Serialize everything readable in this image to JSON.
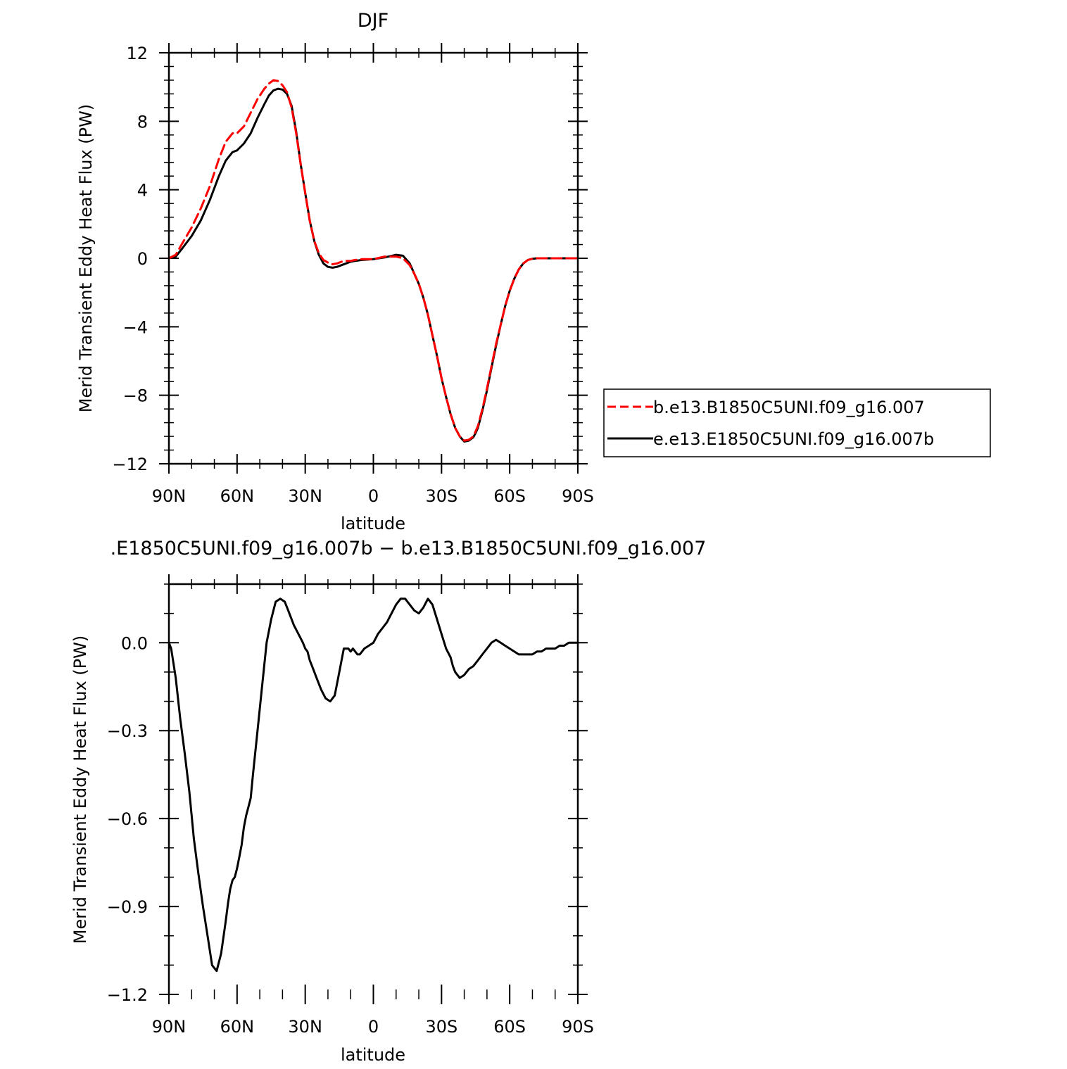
{
  "chart_data": [
    {
      "type": "line",
      "title": "DJF",
      "xlabel": "latitude",
      "ylabel": "Merid Transient Eddy Heat Flux (PW)",
      "xlim": [
        90,
        -90
      ],
      "ylim": [
        -12,
        12
      ],
      "x_ticks": [
        90,
        60,
        30,
        0,
        -30,
        -60,
        -90
      ],
      "x_tick_labels": [
        "90N",
        "60N",
        "30N",
        "0",
        "30S",
        "60S",
        "90S"
      ],
      "y_ticks": [
        -12,
        -8,
        -4,
        0,
        4,
        8,
        12
      ],
      "y_tick_labels": [
        "−12",
        "−8",
        "−4",
        "0",
        "4",
        "8",
        "12"
      ],
      "legend_position": "right",
      "series": [
        {
          "name": "b.e13.B1850C5UNI.f09_g16.007",
          "color": "#ff0000",
          "dash": "dashed",
          "x": [
            90,
            87,
            84,
            80,
            76,
            72,
            68,
            65,
            62,
            60,
            57,
            54,
            51,
            48,
            46,
            44,
            42,
            40,
            38,
            36,
            34,
            32,
            30,
            28,
            26,
            24,
            22,
            20,
            18,
            16,
            14,
            12,
            10,
            8,
            5,
            0,
            -5,
            -10,
            -13,
            -16,
            -18,
            -20,
            -22,
            -24,
            -26,
            -28,
            -30,
            -32,
            -34,
            -36,
            -38,
            -40,
            -42,
            -44,
            -45,
            -46,
            -47,
            -48,
            -49,
            -50,
            -52,
            -54,
            -56,
            -58,
            -60,
            -62,
            -64,
            -66,
            -68,
            -70,
            -72,
            -74,
            -76,
            -78,
            -80,
            -84,
            -90
          ],
          "y": [
            0,
            0.2,
            0.9,
            1.8,
            2.9,
            4.2,
            5.8,
            6.8,
            7.3,
            7.3,
            7.7,
            8.5,
            9.3,
            9.9,
            10.2,
            10.4,
            10.35,
            10.1,
            9.7,
            8.8,
            7.3,
            5.5,
            3.8,
            2.2,
            1.0,
            0.3,
            -0.1,
            -0.25,
            -0.35,
            -0.3,
            -0.2,
            -0.15,
            -0.15,
            -0.1,
            -0.05,
            -0.05,
            0.1,
            0.1,
            0.0,
            -0.4,
            -0.9,
            -1.5,
            -2.3,
            -3.3,
            -4.5,
            -5.7,
            -7.0,
            -8.1,
            -9.1,
            -9.9,
            -10.4,
            -10.65,
            -10.6,
            -10.4,
            -10.1,
            -9.8,
            -9.3,
            -8.8,
            -8.2,
            -7.6,
            -6.3,
            -5.0,
            -3.9,
            -2.8,
            -1.9,
            -1.2,
            -0.65,
            -0.3,
            -0.1,
            -0.03,
            0,
            0,
            0,
            0,
            0,
            0,
            0
          ]
        },
        {
          "name": "e.e13.E1850C5UNI.f09_g16.007b",
          "color": "#000000",
          "dash": "solid",
          "x": [
            90,
            87,
            84,
            80,
            76,
            72,
            68,
            65,
            62,
            60,
            57,
            54,
            51,
            48,
            46,
            44,
            42,
            40,
            38,
            36,
            34,
            32,
            30,
            28,
            26,
            24,
            22,
            20,
            18,
            16,
            14,
            12,
            10,
            8,
            5,
            0,
            -5,
            -10,
            -13,
            -16,
            -18,
            -20,
            -22,
            -24,
            -26,
            -28,
            -30,
            -32,
            -34,
            -36,
            -38,
            -40,
            -42,
            -44,
            -45,
            -46,
            -47,
            -48,
            -49,
            -50,
            -52,
            -54,
            -56,
            -58,
            -60,
            -62,
            -64,
            -66,
            -68,
            -70,
            -72,
            -74,
            -76,
            -78,
            -80,
            -84,
            -90
          ],
          "y": [
            0,
            0.1,
            0.6,
            1.3,
            2.2,
            3.4,
            4.8,
            5.7,
            6.2,
            6.3,
            6.7,
            7.3,
            8.2,
            9.0,
            9.5,
            9.8,
            9.9,
            9.85,
            9.6,
            8.9,
            7.4,
            5.5,
            3.8,
            2.2,
            1.0,
            0.2,
            -0.3,
            -0.5,
            -0.55,
            -0.5,
            -0.4,
            -0.3,
            -0.2,
            -0.15,
            -0.1,
            -0.05,
            0.05,
            0.2,
            0.15,
            -0.3,
            -0.9,
            -1.5,
            -2.3,
            -3.3,
            -4.5,
            -5.7,
            -7.0,
            -8.1,
            -9.1,
            -9.9,
            -10.4,
            -10.7,
            -10.65,
            -10.45,
            -10.2,
            -9.9,
            -9.4,
            -8.9,
            -8.3,
            -7.7,
            -6.4,
            -5.1,
            -3.9,
            -2.8,
            -1.9,
            -1.2,
            -0.65,
            -0.3,
            -0.1,
            -0.03,
            0,
            0,
            0,
            0,
            0,
            0,
            0
          ]
        }
      ]
    },
    {
      "type": "line",
      "title": ".E1850C5UNI.f09_g16.007b − b.e13.B1850C5UNI.f09_g16.007",
      "xlabel": "latitude",
      "ylabel": "Merid Transient Eddy Heat Flux (PW)",
      "xlim": [
        90,
        -90
      ],
      "ylim": [
        -1.2,
        0.2
      ],
      "x_ticks": [
        90,
        60,
        30,
        0,
        -30,
        -60,
        -90
      ],
      "x_tick_labels": [
        "90N",
        "60N",
        "30N",
        "0",
        "30S",
        "60S",
        "90S"
      ],
      "y_ticks": [
        -1.2,
        -0.9,
        -0.6,
        -0.3,
        0.0
      ],
      "y_tick_labels": [
        "−1.2",
        "−0.9",
        "−0.6",
        "−0.3",
        "0.0"
      ],
      "series": [
        {
          "color": "#000000",
          "dash": "solid",
          "x": [
            90,
            89,
            87,
            85,
            83,
            81,
            79,
            77,
            75,
            73,
            71,
            69,
            67,
            65,
            64,
            63,
            62,
            61,
            60,
            59,
            58,
            57,
            56,
            55,
            54,
            53,
            51,
            49,
            47,
            45,
            43,
            41,
            39,
            37,
            35,
            33,
            31,
            30,
            29,
            28,
            27,
            25,
            23,
            21,
            19,
            17,
            15,
            13,
            12,
            11,
            10,
            9,
            8,
            7,
            6,
            5,
            4,
            2,
            0,
            -2,
            -4,
            -6,
            -8,
            -10,
            -12,
            -14,
            -16,
            -18,
            -20,
            -22,
            -24,
            -26,
            -28,
            -30,
            -32,
            -34,
            -35,
            -36,
            -38,
            -40,
            -42,
            -44,
            -46,
            -48,
            -50,
            -52,
            -54,
            -56,
            -58,
            -60,
            -62,
            -64,
            -66,
            -68,
            -70,
            -72,
            -74,
            -76,
            -78,
            -80,
            -82,
            -84,
            -86,
            -88,
            -90
          ],
          "y": [
            0,
            -0.02,
            -0.12,
            -0.26,
            -0.38,
            -0.51,
            -0.67,
            -0.79,
            -0.9,
            -1.0,
            -1.1,
            -1.12,
            -1.06,
            -0.95,
            -0.89,
            -0.84,
            -0.81,
            -0.8,
            -0.77,
            -0.73,
            -0.69,
            -0.63,
            -0.59,
            -0.56,
            -0.53,
            -0.45,
            -0.3,
            -0.15,
            0.0,
            0.08,
            0.14,
            0.15,
            0.14,
            0.1,
            0.06,
            0.03,
            0.0,
            -0.02,
            -0.03,
            -0.06,
            -0.08,
            -0.12,
            -0.16,
            -0.19,
            -0.2,
            -0.18,
            -0.1,
            -0.02,
            -0.02,
            -0.02,
            -0.03,
            -0.02,
            -0.03,
            -0.04,
            -0.04,
            -0.03,
            -0.02,
            -0.01,
            0.0,
            0.03,
            0.05,
            0.07,
            0.1,
            0.13,
            0.15,
            0.15,
            0.13,
            0.11,
            0.1,
            0.12,
            0.15,
            0.13,
            0.08,
            0.03,
            -0.02,
            -0.05,
            -0.08,
            -0.1,
            -0.12,
            -0.11,
            -0.09,
            -0.08,
            -0.06,
            -0.04,
            -0.02,
            0.0,
            0.01,
            0.0,
            -0.01,
            -0.02,
            -0.03,
            -0.04,
            -0.04,
            -0.04,
            -0.04,
            -0.03,
            -0.03,
            -0.02,
            -0.02,
            -0.02,
            -0.01,
            -0.01,
            0.0,
            0.0,
            0.0
          ]
        }
      ]
    }
  ]
}
